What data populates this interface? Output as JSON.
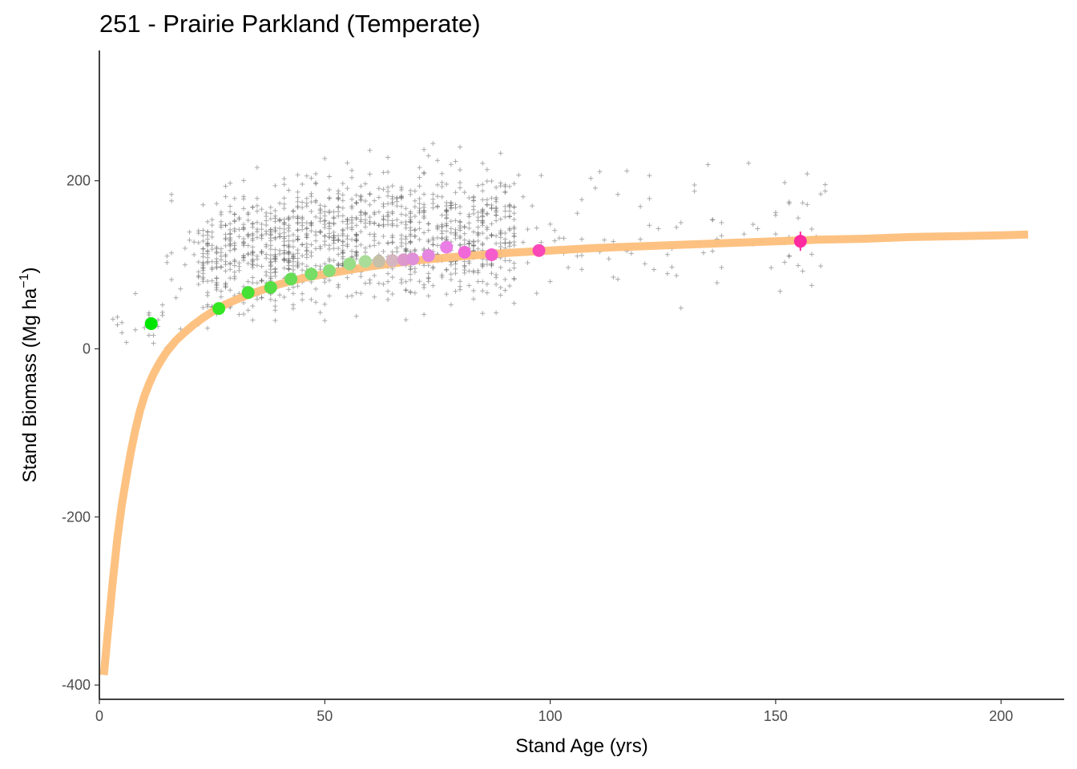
{
  "chart_data": {
    "type": "scatter",
    "title": "251 - Prairie Parkland (Temperate)",
    "xlabel": "Stand Age (yrs)",
    "ylabel_main": "Stand Biomass (Mg ha",
    "ylabel_sup": "−1",
    "ylabel_close": ")",
    "xlim": [
      0,
      214
    ],
    "ylim": [
      -417,
      355
    ],
    "x_ticks": [
      0,
      50,
      100,
      150,
      200
    ],
    "y_ticks": [
      -400,
      -200,
      0,
      200
    ],
    "grid": false,
    "legend": "none",
    "fit_curve": {
      "name": "fitted curve",
      "color": "#fdbf7b",
      "x": [
        1,
        2,
        3,
        4,
        5,
        6,
        7,
        8,
        9,
        10,
        11,
        12,
        13,
        14,
        15,
        17,
        19,
        21,
        23,
        25,
        28,
        31,
        35,
        40,
        45,
        50,
        60,
        70,
        80,
        90,
        100,
        110,
        120,
        130,
        140,
        150,
        160,
        170,
        180,
        190,
        200,
        206
      ],
      "y": [
        -388,
        -330,
        -275,
        -225,
        -185,
        -152,
        -122,
        -96,
        -74,
        -56,
        -42,
        -30,
        -20,
        -11,
        -3,
        10,
        20,
        29,
        37,
        44,
        53,
        60,
        68,
        77,
        84,
        89,
        98,
        105,
        110,
        114,
        117,
        120,
        122,
        124,
        126,
        128,
        130,
        131,
        133,
        134,
        135,
        136
      ]
    },
    "binned_means": {
      "x": [
        11.5,
        26.5,
        33,
        38,
        42.5,
        47,
        51,
        55.5,
        59,
        62,
        65,
        67.5,
        69.5,
        73,
        77,
        81,
        87,
        97.5,
        155.5
      ],
      "y": [
        30,
        48,
        67,
        73,
        83,
        89,
        93,
        101,
        104,
        104,
        105,
        106,
        107,
        111,
        121,
        115,
        112,
        117,
        128
      ],
      "colors": [
        "#00e600",
        "#33e622",
        "#44e033",
        "#55dd44",
        "#66dd55",
        "#77dd66",
        "#88dd77",
        "#99dd88",
        "#aadd99",
        "#c7c0a8",
        "#d5b5c0",
        "#dd99cc",
        "#e090d8",
        "#e485e0",
        "#ea7de6",
        "#f068d8",
        "#f55ccc",
        "#fa48b8",
        "#ff2aa0"
      ]
    },
    "scatter_color": "#555555"
  }
}
